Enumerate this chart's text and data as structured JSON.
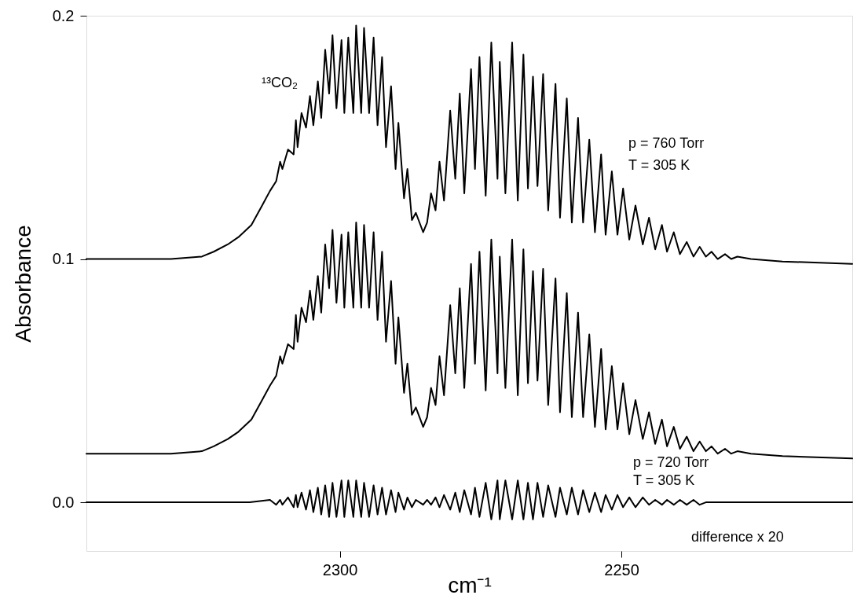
{
  "chart_data": {
    "type": "line",
    "xlabel": "cm⁻¹",
    "ylabel": "Absorbance",
    "xlim": [
      2345,
      2209
    ],
    "ylim": [
      -0.02,
      0.2
    ],
    "xticks": [
      2300,
      2250
    ],
    "yticks": [
      {
        "value": 0,
        "label": "0.0"
      },
      0.1,
      0.2
    ],
    "x": [
      2345,
      2330,
      2324.5,
      2322.4,
      2319.9,
      2318,
      2315.7,
      2313.8,
      2312.4,
      2311.3,
      2310.6,
      2310.2,
      2309.2,
      2308.2,
      2307.8,
      2307.5,
      2306.8,
      2306,
      2305.3,
      2304.7,
      2303.9,
      2303.3,
      2302.6,
      2301.9,
      2301.3,
      2300.6,
      2299.7,
      2299.2,
      2298.5,
      2297.6,
      2297.1,
      2296.2,
      2295.7,
      2294.8,
      2294,
      2293.3,
      2292.5,
      2291.8,
      2290.9,
      2290.1,
      2289.6,
      2288.6,
      2288,
      2287.2,
      2286.5,
      2285.2,
      2284.5,
      2283.8,
      2283,
      2282.3,
      2281.5,
      2280.4,
      2279.5,
      2278.7,
      2277.9,
      2276.7,
      2276,
      2275.2,
      2274.1,
      2273.1,
      2272,
      2271.6,
      2270.6,
      2269.4,
      2268.4,
      2267.4,
      2266.6,
      2265.7,
      2264.9,
      2263.9,
      2263,
      2261.7,
      2260.9,
      2259.7,
      2258.8,
      2257.7,
      2256.8,
      2255.7,
      2254.7,
      2253.6,
      2252.8,
      2251.7,
      2250.7,
      2249.7,
      2248.6,
      2247.5,
      2246.2,
      2245.1,
      2244,
      2242.8,
      2241.9,
      2240.7,
      2239.6,
      2238.4,
      2237.2,
      2236.1,
      2235,
      2234,
      2232.9,
      2231.6,
      2230.5,
      2229.4,
      2227,
      2221.4,
      2209
    ],
    "series": [
      {
        "color": "#000000",
        "values": [
          0.1,
          0.1,
          0.101,
          0.103,
          0.106,
          0.109,
          0.114,
          0.122,
          0.128,
          0.132,
          0.14,
          0.137,
          0.145,
          0.143,
          0.157,
          0.146,
          0.16,
          0.154,
          0.167,
          0.155,
          0.173,
          0.158,
          0.186,
          0.168,
          0.192,
          0.162,
          0.19,
          0.16,
          0.191,
          0.16,
          0.196,
          0.16,
          0.195,
          0.16,
          0.191,
          0.155,
          0.183,
          0.146,
          0.171,
          0.137,
          0.156,
          0.125,
          0.137,
          0.116,
          0.119,
          0.111,
          0.115,
          0.127,
          0.12,
          0.14,
          0.124,
          0.161,
          0.133,
          0.168,
          0.127,
          0.178,
          0.137,
          0.183,
          0.126,
          0.189,
          0.133,
          0.181,
          0.127,
          0.189,
          0.124,
          0.184,
          0.129,
          0.175,
          0.13,
          0.176,
          0.12,
          0.172,
          0.117,
          0.166,
          0.115,
          0.158,
          0.115,
          0.149,
          0.111,
          0.143,
          0.11,
          0.136,
          0.11,
          0.129,
          0.108,
          0.122,
          0.106,
          0.117,
          0.104,
          0.114,
          0.103,
          0.111,
          0.102,
          0.107,
          0.101,
          0.105,
          0.101,
          0.103,
          0.1,
          0.102,
          0.1,
          0.101,
          0.1,
          0.099,
          0.098
        ]
      },
      {
        "color": "#000000",
        "values": [
          0.02,
          0.02,
          0.021,
          0.023,
          0.026,
          0.029,
          0.034,
          0.042,
          0.048,
          0.052,
          0.06,
          0.057,
          0.065,
          0.063,
          0.077,
          0.066,
          0.08,
          0.074,
          0.087,
          0.075,
          0.093,
          0.078,
          0.106,
          0.088,
          0.112,
          0.082,
          0.11,
          0.08,
          0.111,
          0.08,
          0.115,
          0.08,
          0.114,
          0.08,
          0.111,
          0.075,
          0.103,
          0.066,
          0.091,
          0.057,
          0.076,
          0.045,
          0.057,
          0.036,
          0.039,
          0.031,
          0.035,
          0.047,
          0.04,
          0.06,
          0.044,
          0.081,
          0.053,
          0.088,
          0.047,
          0.098,
          0.057,
          0.103,
          0.046,
          0.108,
          0.053,
          0.101,
          0.047,
          0.108,
          0.044,
          0.104,
          0.049,
          0.095,
          0.05,
          0.096,
          0.04,
          0.092,
          0.037,
          0.086,
          0.035,
          0.078,
          0.035,
          0.069,
          0.031,
          0.063,
          0.03,
          0.056,
          0.03,
          0.049,
          0.028,
          0.042,
          0.026,
          0.037,
          0.024,
          0.034,
          0.023,
          0.031,
          0.022,
          0.027,
          0.021,
          0.025,
          0.021,
          0.023,
          0.02,
          0.022,
          0.02,
          0.021,
          0.02,
          0.019,
          0.018
        ]
      },
      {
        "color": "#000000",
        "x": [
          2345,
          2320,
          2316,
          2312.4,
          2311.3,
          2310.6,
          2310.2,
          2309.2,
          2308.2,
          2307.8,
          2307.5,
          2306.8,
          2306,
          2305.3,
          2304.7,
          2303.9,
          2303.3,
          2302.6,
          2301.9,
          2301.3,
          2300.6,
          2299.7,
          2299.2,
          2298.5,
          2297.6,
          2297.1,
          2296.2,
          2295.7,
          2294.8,
          2294,
          2293.3,
          2292.5,
          2291.8,
          2290.9,
          2290.1,
          2289.6,
          2288.6,
          2288,
          2287.2,
          2286.5,
          2285.2,
          2284.5,
          2283.8,
          2283,
          2282.3,
          2281.5,
          2280.4,
          2279.5,
          2278.7,
          2277.9,
          2276.7,
          2276,
          2275.2,
          2274.1,
          2273.1,
          2272,
          2271.6,
          2270.6,
          2269.4,
          2268.4,
          2267.4,
          2266.6,
          2265.7,
          2264.9,
          2263.9,
          2263,
          2261.7,
          2260.9,
          2259.7,
          2258.8,
          2257.7,
          2256.8,
          2255.7,
          2254.7,
          2253.6,
          2252.8,
          2251.7,
          2250.7,
          2249.7,
          2248.6,
          2247.5,
          2246.2,
          2245.1,
          2244,
          2242.8,
          2241.9,
          2240.7,
          2239.6,
          2238.4,
          2237.2,
          2236.1,
          2235,
          2209
        ],
        "values": [
          0,
          0,
          0,
          0.001,
          -0.001,
          0.001,
          -0.001,
          0.002,
          -0.002,
          0.003,
          -0.002,
          0.004,
          -0.003,
          0.005,
          -0.004,
          0.006,
          -0.005,
          0.007,
          -0.006,
          0.008,
          -0.006,
          0.009,
          -0.006,
          0.009,
          -0.006,
          0.009,
          -0.006,
          0.008,
          -0.006,
          0.007,
          -0.005,
          0.006,
          -0.005,
          0.005,
          -0.004,
          0.004,
          -0.003,
          0.002,
          -0.002,
          0.001,
          -0.001,
          0.001,
          -0.001,
          0.002,
          -0.002,
          0.003,
          -0.003,
          0.004,
          -0.004,
          0.005,
          -0.005,
          0.006,
          -0.006,
          0.008,
          -0.007,
          0.009,
          -0.007,
          0.009,
          -0.007,
          0.009,
          -0.007,
          0.008,
          -0.007,
          0.008,
          -0.006,
          0.007,
          -0.006,
          0.006,
          -0.005,
          0.006,
          -0.005,
          0.005,
          -0.004,
          0.004,
          -0.004,
          0.003,
          -0.003,
          0.003,
          -0.002,
          0.002,
          -0.002,
          0.002,
          -0.001,
          0.001,
          -0.001,
          0.001,
          -0.001,
          0.001,
          -0.001,
          0.001,
          -0.001,
          0,
          0
        ]
      }
    ],
    "annotations": [
      "¹³CO₂",
      "p = 760 Torr",
      "T = 305 K",
      "p = 720 Torr",
      "T = 305 K",
      "difference x 20"
    ]
  }
}
